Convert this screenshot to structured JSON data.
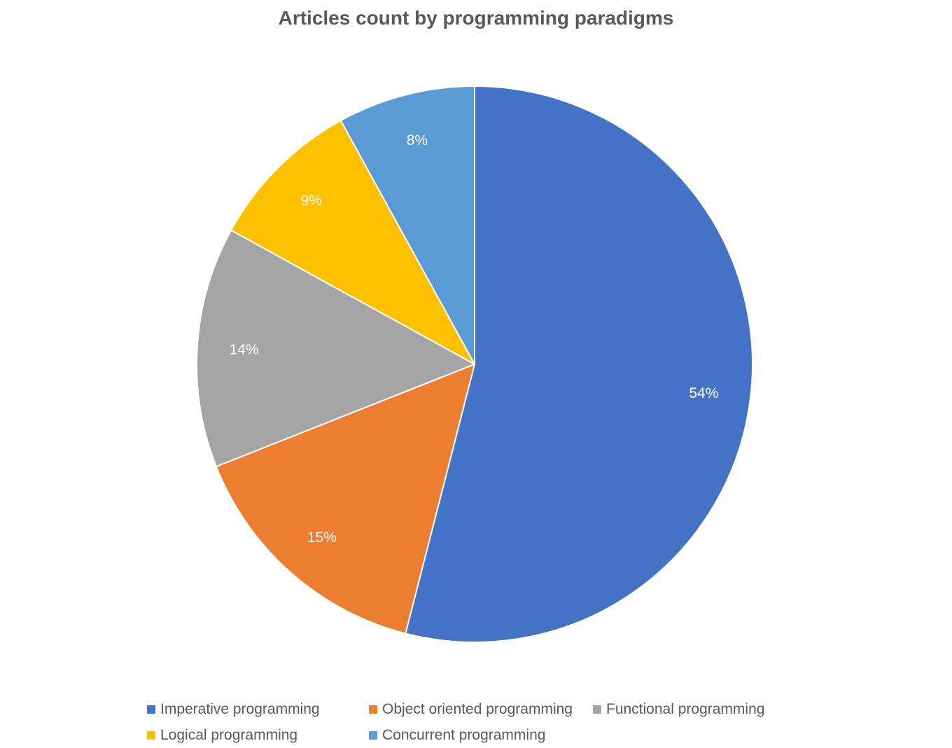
{
  "chart_data": {
    "type": "pie",
    "title": "Articles count by programming paradigms",
    "slices": [
      {
        "label": "Imperative programming",
        "value": 54,
        "data_label": "54%",
        "color": "#4472C4"
      },
      {
        "label": "Object oriented programming",
        "value": 15,
        "data_label": "15%",
        "color": "#ED7D31"
      },
      {
        "label": "Functional programming",
        "value": 14,
        "data_label": "14%",
        "color": "#A5A5A5"
      },
      {
        "label": "Logical programming",
        "value": 9,
        "data_label": "9%",
        "color": "#FFC000"
      },
      {
        "label": "Concurrent programming",
        "value": 8,
        "data_label": "8%",
        "color": "#5B9BD5"
      }
    ],
    "legend_position": "bottom",
    "data_label_color": "#FFFFFF",
    "start_angle": "12 o'clock",
    "direction": "clockwise"
  }
}
